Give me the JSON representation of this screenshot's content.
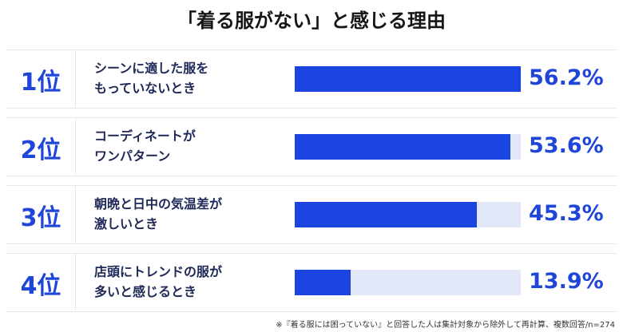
{
  "chart_data": {
    "type": "bar",
    "orientation": "horizontal",
    "title": "「着る服がない」と感じる理由",
    "ranks": [
      "1位",
      "2位",
      "3位",
      "4位"
    ],
    "categories": [
      "シーンに適した服を\nもっていないとき",
      "コーディネートが\nワンパターン",
      "朝晩と日中の気温差が\n激しいとき",
      "店頭にトレンドの服が\n多いと感じるとき"
    ],
    "values": [
      56.2,
      53.6,
      45.3,
      13.9
    ],
    "value_labels": [
      "56.2%",
      "53.6%",
      "45.3%",
      "13.9%"
    ],
    "xlim": [
      0,
      56.2
    ],
    "color": "#1a45e0",
    "track_color": "#e2e8f8",
    "footnote": "※『着る服には困っていない』と回答した人は集計対象から除外して再計算、複数回答/n=274"
  }
}
